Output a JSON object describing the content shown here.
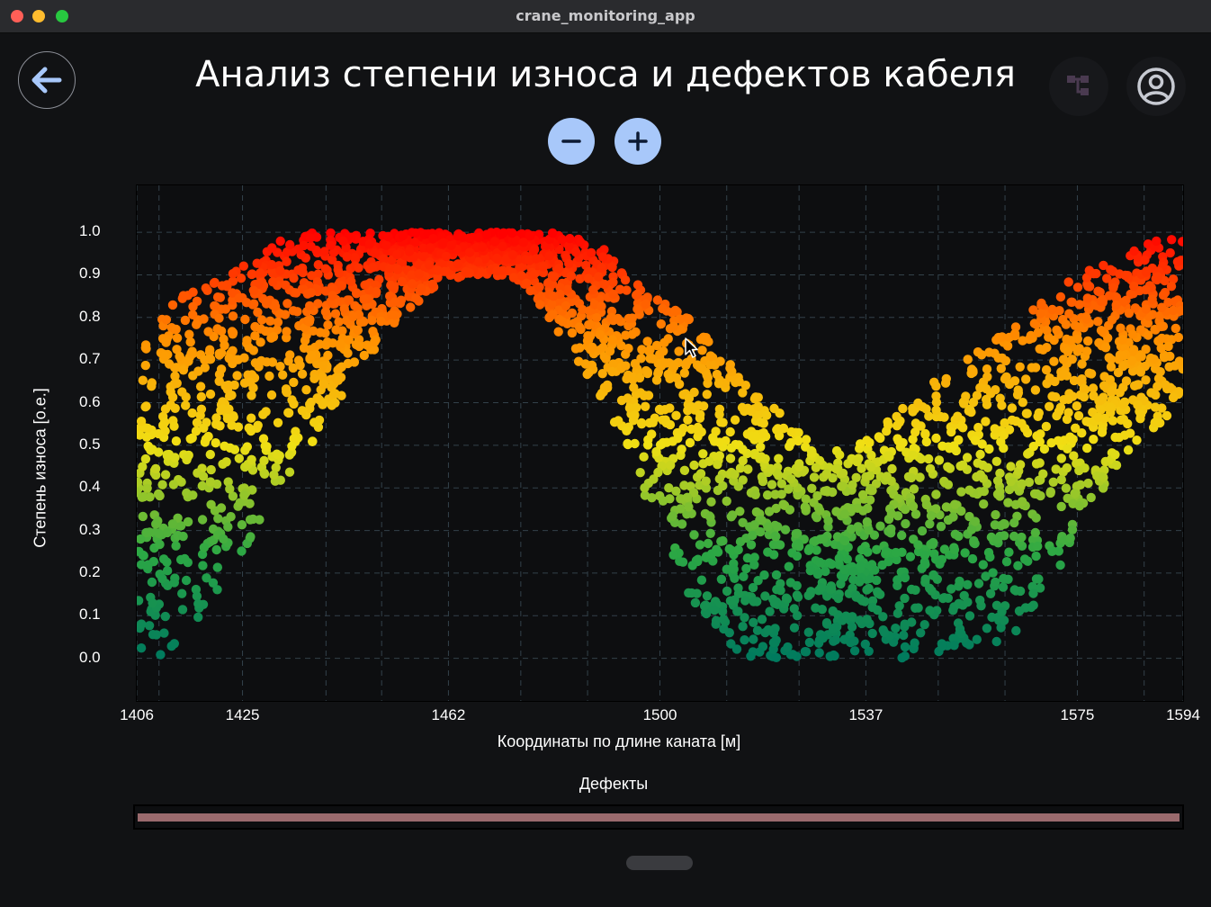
{
  "window": {
    "title": "crane_monitoring_app"
  },
  "header": {
    "title": "Анализ степени износа и дефектов кабеля",
    "back_icon": "arrow-left-icon",
    "tree_icon": "tree-structure-icon",
    "profile_icon": "account-circle-icon"
  },
  "zoom": {
    "out_icon": "minus-icon",
    "in_icon": "plus-icon"
  },
  "colors": {
    "background": "#111214",
    "accent": "#a8c8fa",
    "gradient": [
      "#007a5e",
      "#2ca844",
      "#f0e014",
      "#ff9000",
      "#ff0000"
    ]
  },
  "chart_data": {
    "type": "scatter",
    "xlabel": "Координаты по длине каната [м]",
    "ylabel": "Степень износа [о.е.]",
    "x_ticks": [
      "1406",
      "1425",
      "1462",
      "1500",
      "1537",
      "1575",
      "1594"
    ],
    "y_ticks": [
      "0.0",
      "0.1",
      "0.2",
      "0.3",
      "0.4",
      "0.5",
      "0.6",
      "0.7",
      "0.8",
      "0.9",
      "1.0"
    ],
    "xlim": [
      1406,
      1594
    ],
    "ylim": [
      -0.1,
      1.11
    ],
    "grid": true,
    "series": [
      {
        "x": [
          1406,
          1410,
          1415,
          1420,
          1425,
          1430,
          1435,
          1440,
          1445,
          1450,
          1455,
          1460,
          1465,
          1470,
          1475,
          1480,
          1485,
          1490,
          1495,
          1500,
          1505,
          1510,
          1515,
          1520,
          1525,
          1530,
          1535,
          1540,
          1545,
          1550,
          1555,
          1560,
          1565,
          1570,
          1575,
          1580,
          1585,
          1590,
          1594
        ],
        "y_upper": [
          0.75,
          0.8,
          0.86,
          0.9,
          0.93,
          0.97,
          1.0,
          1.0,
          1.0,
          1.0,
          1.0,
          1.0,
          1.0,
          1.0,
          1.0,
          1.0,
          0.99,
          0.96,
          0.9,
          0.84,
          0.8,
          0.73,
          0.66,
          0.6,
          0.53,
          0.48,
          0.5,
          0.55,
          0.6,
          0.66,
          0.7,
          0.75,
          0.8,
          0.85,
          0.9,
          0.93,
          0.96,
          0.99,
          1.0
        ],
        "y_lower": [
          0.0,
          0.0,
          0.05,
          0.15,
          0.25,
          0.35,
          0.45,
          0.55,
          0.65,
          0.75,
          0.82,
          0.87,
          0.9,
          0.9,
          0.88,
          0.8,
          0.7,
          0.58,
          0.45,
          0.3,
          0.15,
          0.05,
          0.0,
          0.0,
          0.0,
          0.0,
          0.0,
          0.0,
          0.0,
          0.0,
          0.0,
          0.0,
          0.05,
          0.15,
          0.3,
          0.4,
          0.5,
          0.55,
          0.6
        ]
      }
    ]
  },
  "defects": {
    "title": "Дефекты"
  }
}
